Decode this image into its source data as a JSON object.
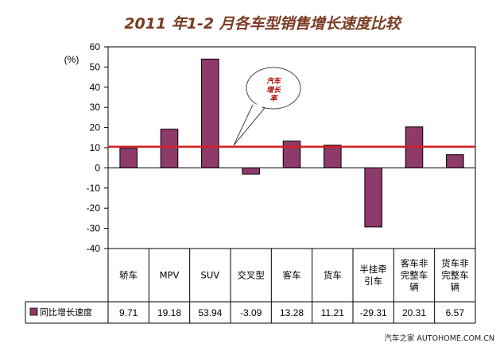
{
  "chart_data": {
    "type": "bar",
    "title": "2011 年1-2 月各车型销售增长速度比较",
    "ylabel": "(%)",
    "ylim": [
      -40,
      60
    ],
    "yticks": [
      "60",
      "50",
      "40",
      "30",
      "20",
      "10",
      "0",
      "-10",
      "-20",
      "-30",
      "-40"
    ],
    "grid": false,
    "categories": [
      [
        "轿车"
      ],
      [
        "MPV"
      ],
      [
        "SUV"
      ],
      [
        "交叉型"
      ],
      [
        "客车"
      ],
      [
        "货车"
      ],
      [
        "半挂牵",
        "引车"
      ],
      [
        "客车非",
        "完整车",
        "辆"
      ],
      [
        "货车非",
        "完整车",
        "辆"
      ]
    ],
    "series": [
      {
        "name": "同比增长速度",
        "color": "#8e3a6a",
        "values": [
          9.71,
          19.18,
          53.94,
          -3.09,
          13.28,
          11.21,
          -29.31,
          20.31,
          6.57
        ],
        "value_labels": [
          "9.71",
          "19.18",
          "53.94",
          "-3.09",
          "13.28",
          "11.21",
          "-29.31",
          "20.31",
          "6.57"
        ]
      }
    ],
    "reference_line": {
      "value": 10.5,
      "color": "#d42020"
    },
    "annotation": {
      "lines": [
        "汽车",
        "增长",
        "率"
      ],
      "color": "#b01010"
    },
    "watermark": "汽车之家 AUTOHOME.COM.CN"
  }
}
